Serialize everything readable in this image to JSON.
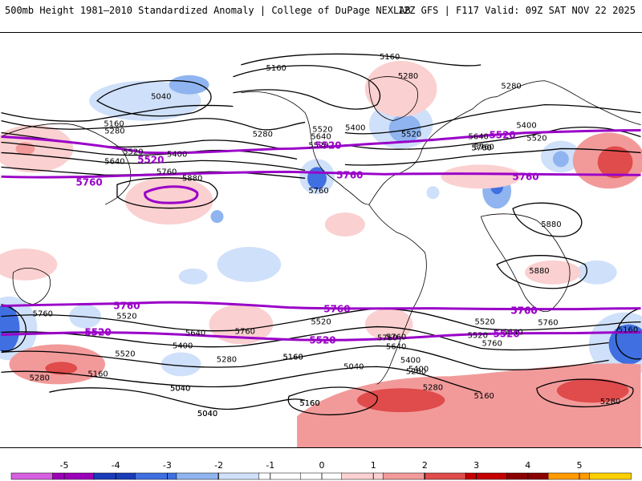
{
  "header": {
    "title": "500mb Height 1981–2010 Standardized Anomaly | College of DuPage NEXLAB",
    "run_info": "12Z GFS | F117 Valid: 09Z SAT NOV 22 2025"
  },
  "colors": {
    "contour": "#000000",
    "highlight_contour": "#9a00c8",
    "coast": "#000000"
  },
  "colorbar": {
    "ticks": [
      "-5",
      "-4",
      "-3",
      "-2",
      "-1",
      "0",
      "1",
      "2",
      "3",
      "4",
      "5"
    ],
    "colors": [
      "#d660e0",
      "#9c00b8",
      "#1a3cb8",
      "#3f6fe0",
      "#8fb4f0",
      "#cfe0fa",
      "#ffffff",
      "#ffffff",
      "#fbd0d0",
      "#f29a9a",
      "#e04b4b",
      "#c40000",
      "#8a0000",
      "#ff9a00",
      "#ffd000"
    ]
  },
  "contour_labels": [
    "5160",
    "5160",
    "5280",
    "5040",
    "5160",
    "5280",
    "5520",
    "5400",
    "5640",
    "5520",
    "5760",
    "5880",
    "5280",
    "5400",
    "5640",
    "5520",
    "5760",
    "5520",
    "5760",
    "5760",
    "5280",
    "5400",
    "5640",
    "5520",
    "5760",
    "5880",
    "5880",
    "5760",
    "5520",
    "5640",
    "5760",
    "5400",
    "5280",
    "5160",
    "5040",
    "5040",
    "5160",
    "5520",
    "5760",
    "5400",
    "5640",
    "5160",
    "5040",
    "5760",
    "5640",
    "5400",
    "5280",
    "5280",
    "5520",
    "5760",
    "5520",
    "5760",
    "5520",
    "5160",
    "5280",
    "5160",
    "5040",
    "5040",
    "5160",
    "5280",
    "5160"
  ],
  "highlight_labels": [
    "5520",
    "5760",
    "5520",
    "5760",
    "5760",
    "5520",
    "5760",
    "5760",
    "5520",
    "5760",
    "5760",
    "5520",
    "5520",
    "5520"
  ]
}
